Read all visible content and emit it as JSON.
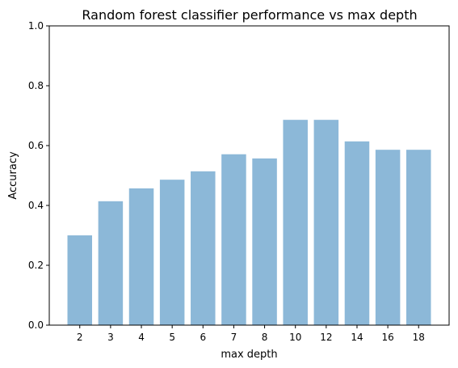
{
  "chart_data": {
    "type": "bar",
    "title": "Random forest classifier performance vs max depth",
    "xlabel": "max depth",
    "ylabel": "Accuracy",
    "categories": [
      "2",
      "3",
      "4",
      "5",
      "6",
      "7",
      "8",
      "10",
      "12",
      "14",
      "16",
      "18"
    ],
    "values": [
      0.3,
      0.414,
      0.457,
      0.486,
      0.514,
      0.571,
      0.557,
      0.686,
      0.686,
      0.614,
      0.586,
      0.586
    ],
    "ylim": [
      0,
      1
    ],
    "yticks": [
      "0.0",
      "0.2",
      "0.4",
      "0.6",
      "0.8",
      "1.0"
    ],
    "bar_color": "#8cb8d8",
    "grid": false,
    "legend": "none"
  }
}
